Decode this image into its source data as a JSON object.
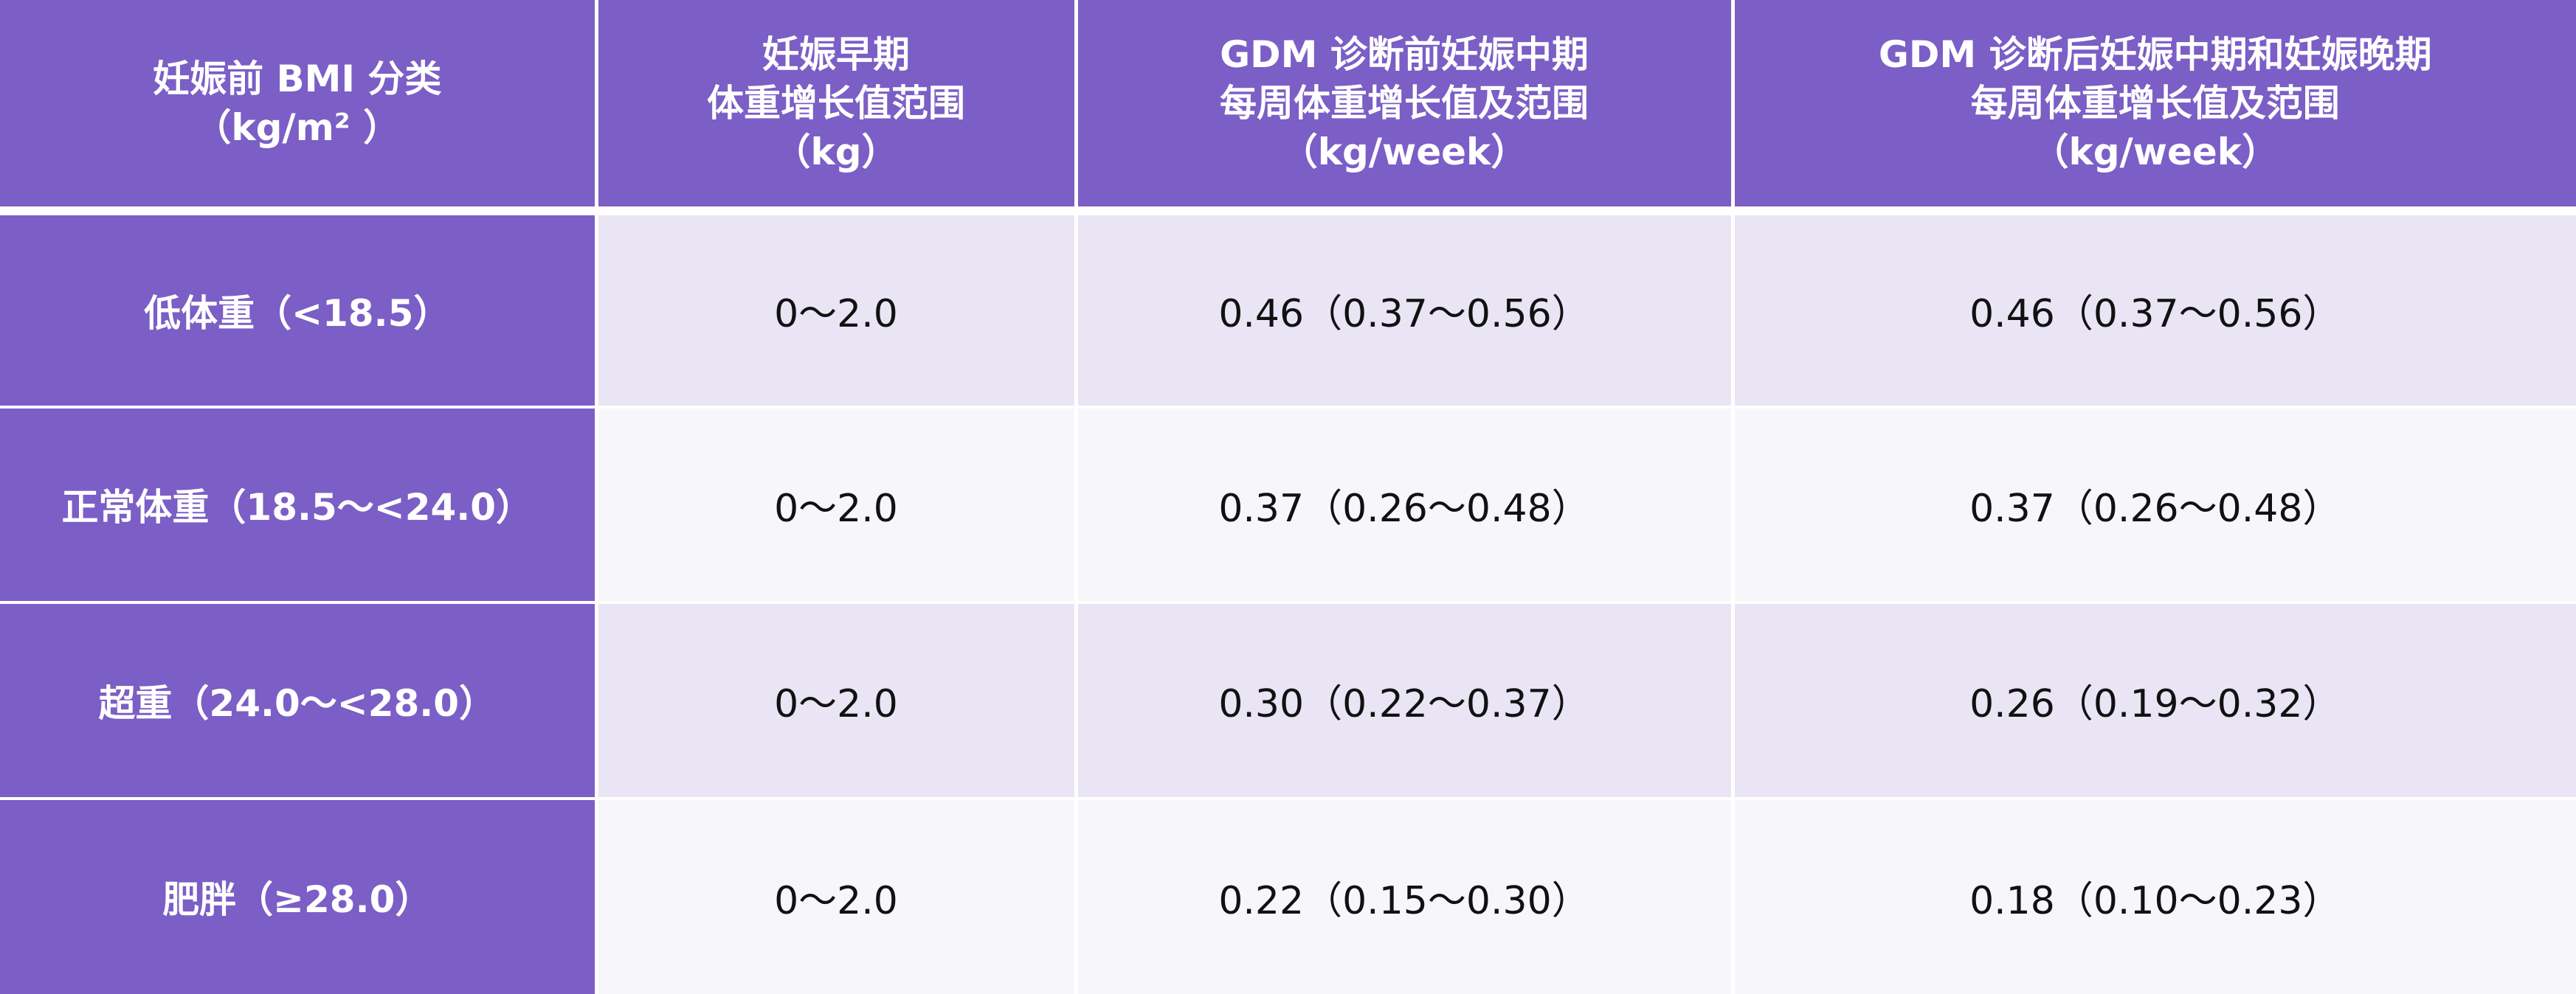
{
  "table": {
    "headers": [
      {
        "lines": [
          "妊娠前 BMI 分类",
          "（kg/m² ）"
        ]
      },
      {
        "lines": [
          "妊娠早期",
          "体重增长值范围",
          "（kg）"
        ]
      },
      {
        "lines": [
          "GDM 诊断前妊娠中期",
          "每周体重增长值及范围",
          "（kg/week）"
        ]
      },
      {
        "lines": [
          "GDM 诊断后妊娠中期和妊娠晚期",
          "每周体重增长值及范围",
          "（kg/week）"
        ]
      }
    ],
    "rows": [
      {
        "category": "低体重（<18.5）",
        "early": "0～2.0",
        "pre_gdm": "0.46（0.37～0.56）",
        "post_gdm": "0.46（0.37～0.56）"
      },
      {
        "category": "正常体重（18.5～<24.0）",
        "early": "0～2.0",
        "pre_gdm": "0.37（0.26～0.48）",
        "post_gdm": "0.37（0.26～0.48）"
      },
      {
        "category": "超重（24.0～<28.0）",
        "early": "0～2.0",
        "pre_gdm": "0.30（0.22～0.37）",
        "post_gdm": "0.26（0.19～0.32）"
      },
      {
        "category": "肥胖（≥28.0）",
        "early": "0～2.0",
        "pre_gdm": "0.22（0.15～0.30）",
        "post_gdm": "0.18（0.10～0.23）"
      }
    ]
  }
}
